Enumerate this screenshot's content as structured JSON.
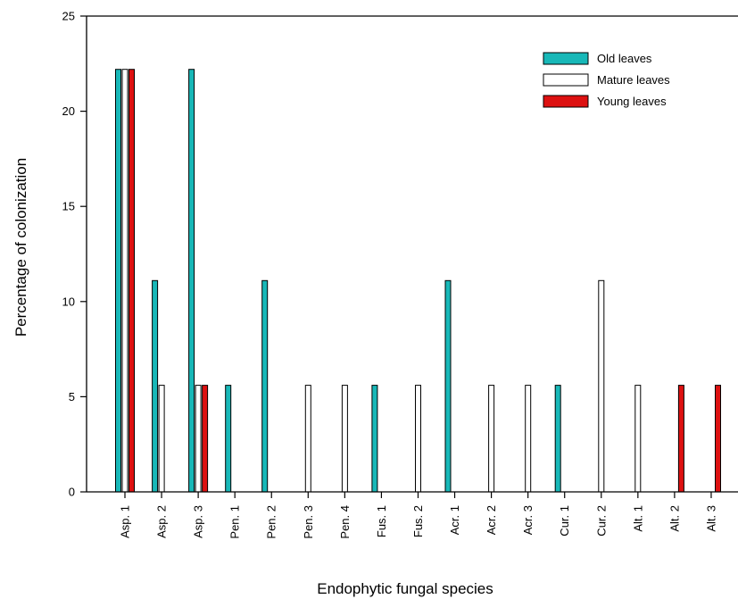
{
  "chart_data": {
    "type": "bar",
    "title": "",
    "xlabel": "Endophytic fungal species",
    "ylabel": "Percentage of colonization",
    "ylim": [
      0,
      25
    ],
    "yticks": [
      0,
      5,
      10,
      15,
      20,
      25
    ],
    "grid": false,
    "legend_position": "top-right",
    "categories": [
      "Asp. 1",
      "Asp. 2",
      "Asp. 3",
      "Pen. 1",
      "Pen. 2",
      "Pen. 3",
      "Pen. 4",
      "Fus. 1",
      "Fus. 2",
      "Acr. 1",
      "Acr. 2",
      "Acr. 3",
      "Cur. 1",
      "Cur. 2",
      "Alt. 1",
      "Alt. 2",
      "Alt. 3"
    ],
    "series": [
      {
        "name": "Old leaves",
        "color": "#18b8b8",
        "values": [
          22.2,
          11.1,
          22.2,
          5.6,
          11.1,
          0,
          0,
          5.6,
          0,
          11.1,
          0,
          0,
          5.6,
          0,
          0,
          0,
          0
        ]
      },
      {
        "name": "Mature leaves",
        "color": "#ffffff",
        "values": [
          22.2,
          5.6,
          5.6,
          0,
          0,
          5.6,
          5.6,
          0,
          5.6,
          0,
          5.6,
          5.6,
          0,
          11.1,
          5.6,
          0,
          0
        ]
      },
      {
        "name": "Young leaves",
        "color": "#dd1111",
        "values": [
          22.2,
          0,
          5.6,
          0,
          0,
          0,
          0,
          0,
          0,
          0,
          0,
          0,
          0,
          0,
          0,
          5.6,
          5.6
        ]
      }
    ]
  }
}
